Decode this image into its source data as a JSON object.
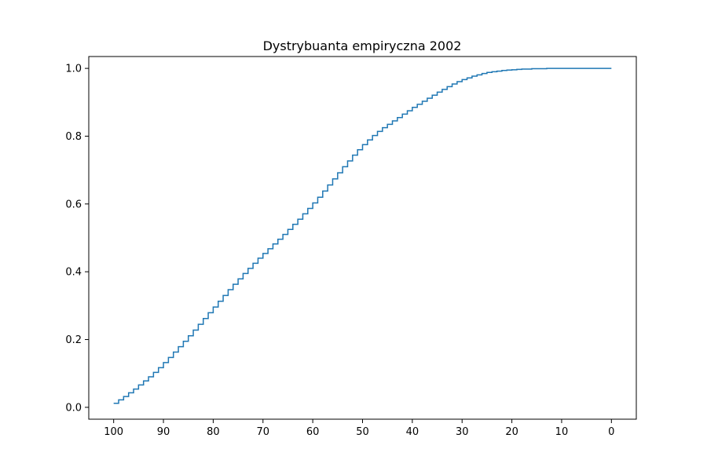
{
  "chart_data": {
    "type": "line",
    "step": "post",
    "title": "Dystrybuanta empiryczna 2002",
    "xlabel": "",
    "ylabel": "",
    "x_axis_reversed": true,
    "xlim": [
      105,
      -5
    ],
    "ylim": [
      -0.035,
      1.035
    ],
    "x_ticks": [
      100,
      90,
      80,
      70,
      60,
      50,
      40,
      30,
      20,
      10,
      0
    ],
    "x_tick_labels": [
      "100",
      "90",
      "80",
      "70",
      "60",
      "50",
      "40",
      "30",
      "20",
      "10",
      "0"
    ],
    "y_ticks": [
      0.0,
      0.2,
      0.4,
      0.6,
      0.8,
      1.0
    ],
    "y_tick_labels": [
      "0.0",
      "0.2",
      "0.4",
      "0.6",
      "0.8",
      "1.0"
    ],
    "grid": false,
    "series": [
      {
        "color": "#1f77b4",
        "x": [
          100,
          99,
          98,
          97,
          96,
          95,
          94,
          93,
          92,
          91,
          90,
          89,
          88,
          87,
          86,
          85,
          84,
          83,
          82,
          81,
          80,
          79,
          78,
          77,
          76,
          75,
          74,
          73,
          72,
          71,
          70,
          69,
          68,
          67,
          66,
          65,
          64,
          63,
          62,
          61,
          60,
          59,
          58,
          57,
          56,
          55,
          54,
          53,
          52,
          51,
          50,
          49,
          48,
          47,
          46,
          45,
          44,
          43,
          42,
          41,
          40,
          39,
          38,
          37,
          36,
          35,
          34,
          33,
          32,
          31,
          30,
          29,
          28,
          27,
          26,
          25,
          24,
          23,
          22,
          21,
          20,
          19,
          18,
          17,
          16,
          15,
          14,
          13,
          12,
          11,
          10,
          9,
          8,
          7,
          6,
          5,
          4,
          3,
          2,
          1,
          0
        ],
        "y": [
          0.012,
          0.022,
          0.032,
          0.043,
          0.054,
          0.066,
          0.078,
          0.09,
          0.103,
          0.117,
          0.132,
          0.147,
          0.163,
          0.179,
          0.195,
          0.211,
          0.228,
          0.245,
          0.262,
          0.279,
          0.296,
          0.313,
          0.33,
          0.347,
          0.363,
          0.379,
          0.395,
          0.41,
          0.425,
          0.44,
          0.454,
          0.468,
          0.482,
          0.496,
          0.51,
          0.525,
          0.54,
          0.555,
          0.571,
          0.587,
          0.603,
          0.62,
          0.638,
          0.656,
          0.674,
          0.692,
          0.71,
          0.727,
          0.744,
          0.76,
          0.775,
          0.789,
          0.802,
          0.814,
          0.825,
          0.835,
          0.845,
          0.855,
          0.865,
          0.875,
          0.885,
          0.894,
          0.903,
          0.912,
          0.921,
          0.93,
          0.938,
          0.946,
          0.954,
          0.961,
          0.967,
          0.972,
          0.977,
          0.981,
          0.985,
          0.988,
          0.99,
          0.992,
          0.994,
          0.995,
          0.996,
          0.997,
          0.998,
          0.998,
          0.999,
          0.999,
          0.999,
          1.0,
          1.0,
          1.0,
          1.0,
          1.0,
          1.0,
          1.0,
          1.0,
          1.0,
          1.0,
          1.0,
          1.0,
          1.0,
          1.0
        ]
      }
    ]
  }
}
